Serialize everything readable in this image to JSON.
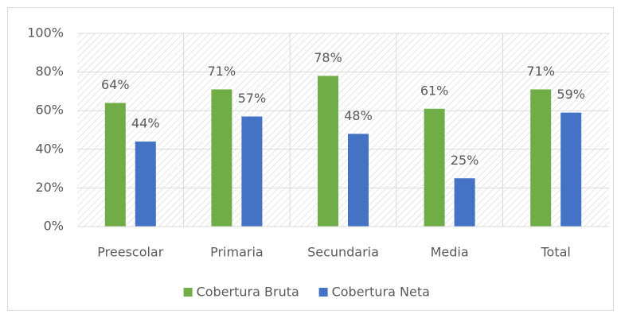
{
  "chart_data": {
    "type": "bar",
    "categories": [
      "Preescolar",
      "Primaria",
      "Secundaria",
      "Media",
      "Total"
    ],
    "series": [
      {
        "name": "Cobertura Bruta",
        "color": "#70ad47",
        "values": [
          64,
          71,
          78,
          61,
          71
        ],
        "value_labels": [
          "64%",
          "71%",
          "78%",
          "61%",
          "71%"
        ]
      },
      {
        "name": "Cobertura Neta",
        "color": "#4472c4",
        "values": [
          44,
          57,
          48,
          25,
          59
        ],
        "value_labels": [
          "44%",
          "57%",
          "48%",
          "25%",
          "59%"
        ]
      }
    ],
    "ylim": [
      0,
      100
    ],
    "yticks": [
      {
        "value": 0,
        "label": "0%"
      },
      {
        "value": 20,
        "label": "20%"
      },
      {
        "value": 40,
        "label": "40%"
      },
      {
        "value": 60,
        "label": "60%"
      },
      {
        "value": 80,
        "label": "80%"
      },
      {
        "value": 100,
        "label": "100%"
      }
    ],
    "grid": true,
    "legend": "bottom"
  }
}
